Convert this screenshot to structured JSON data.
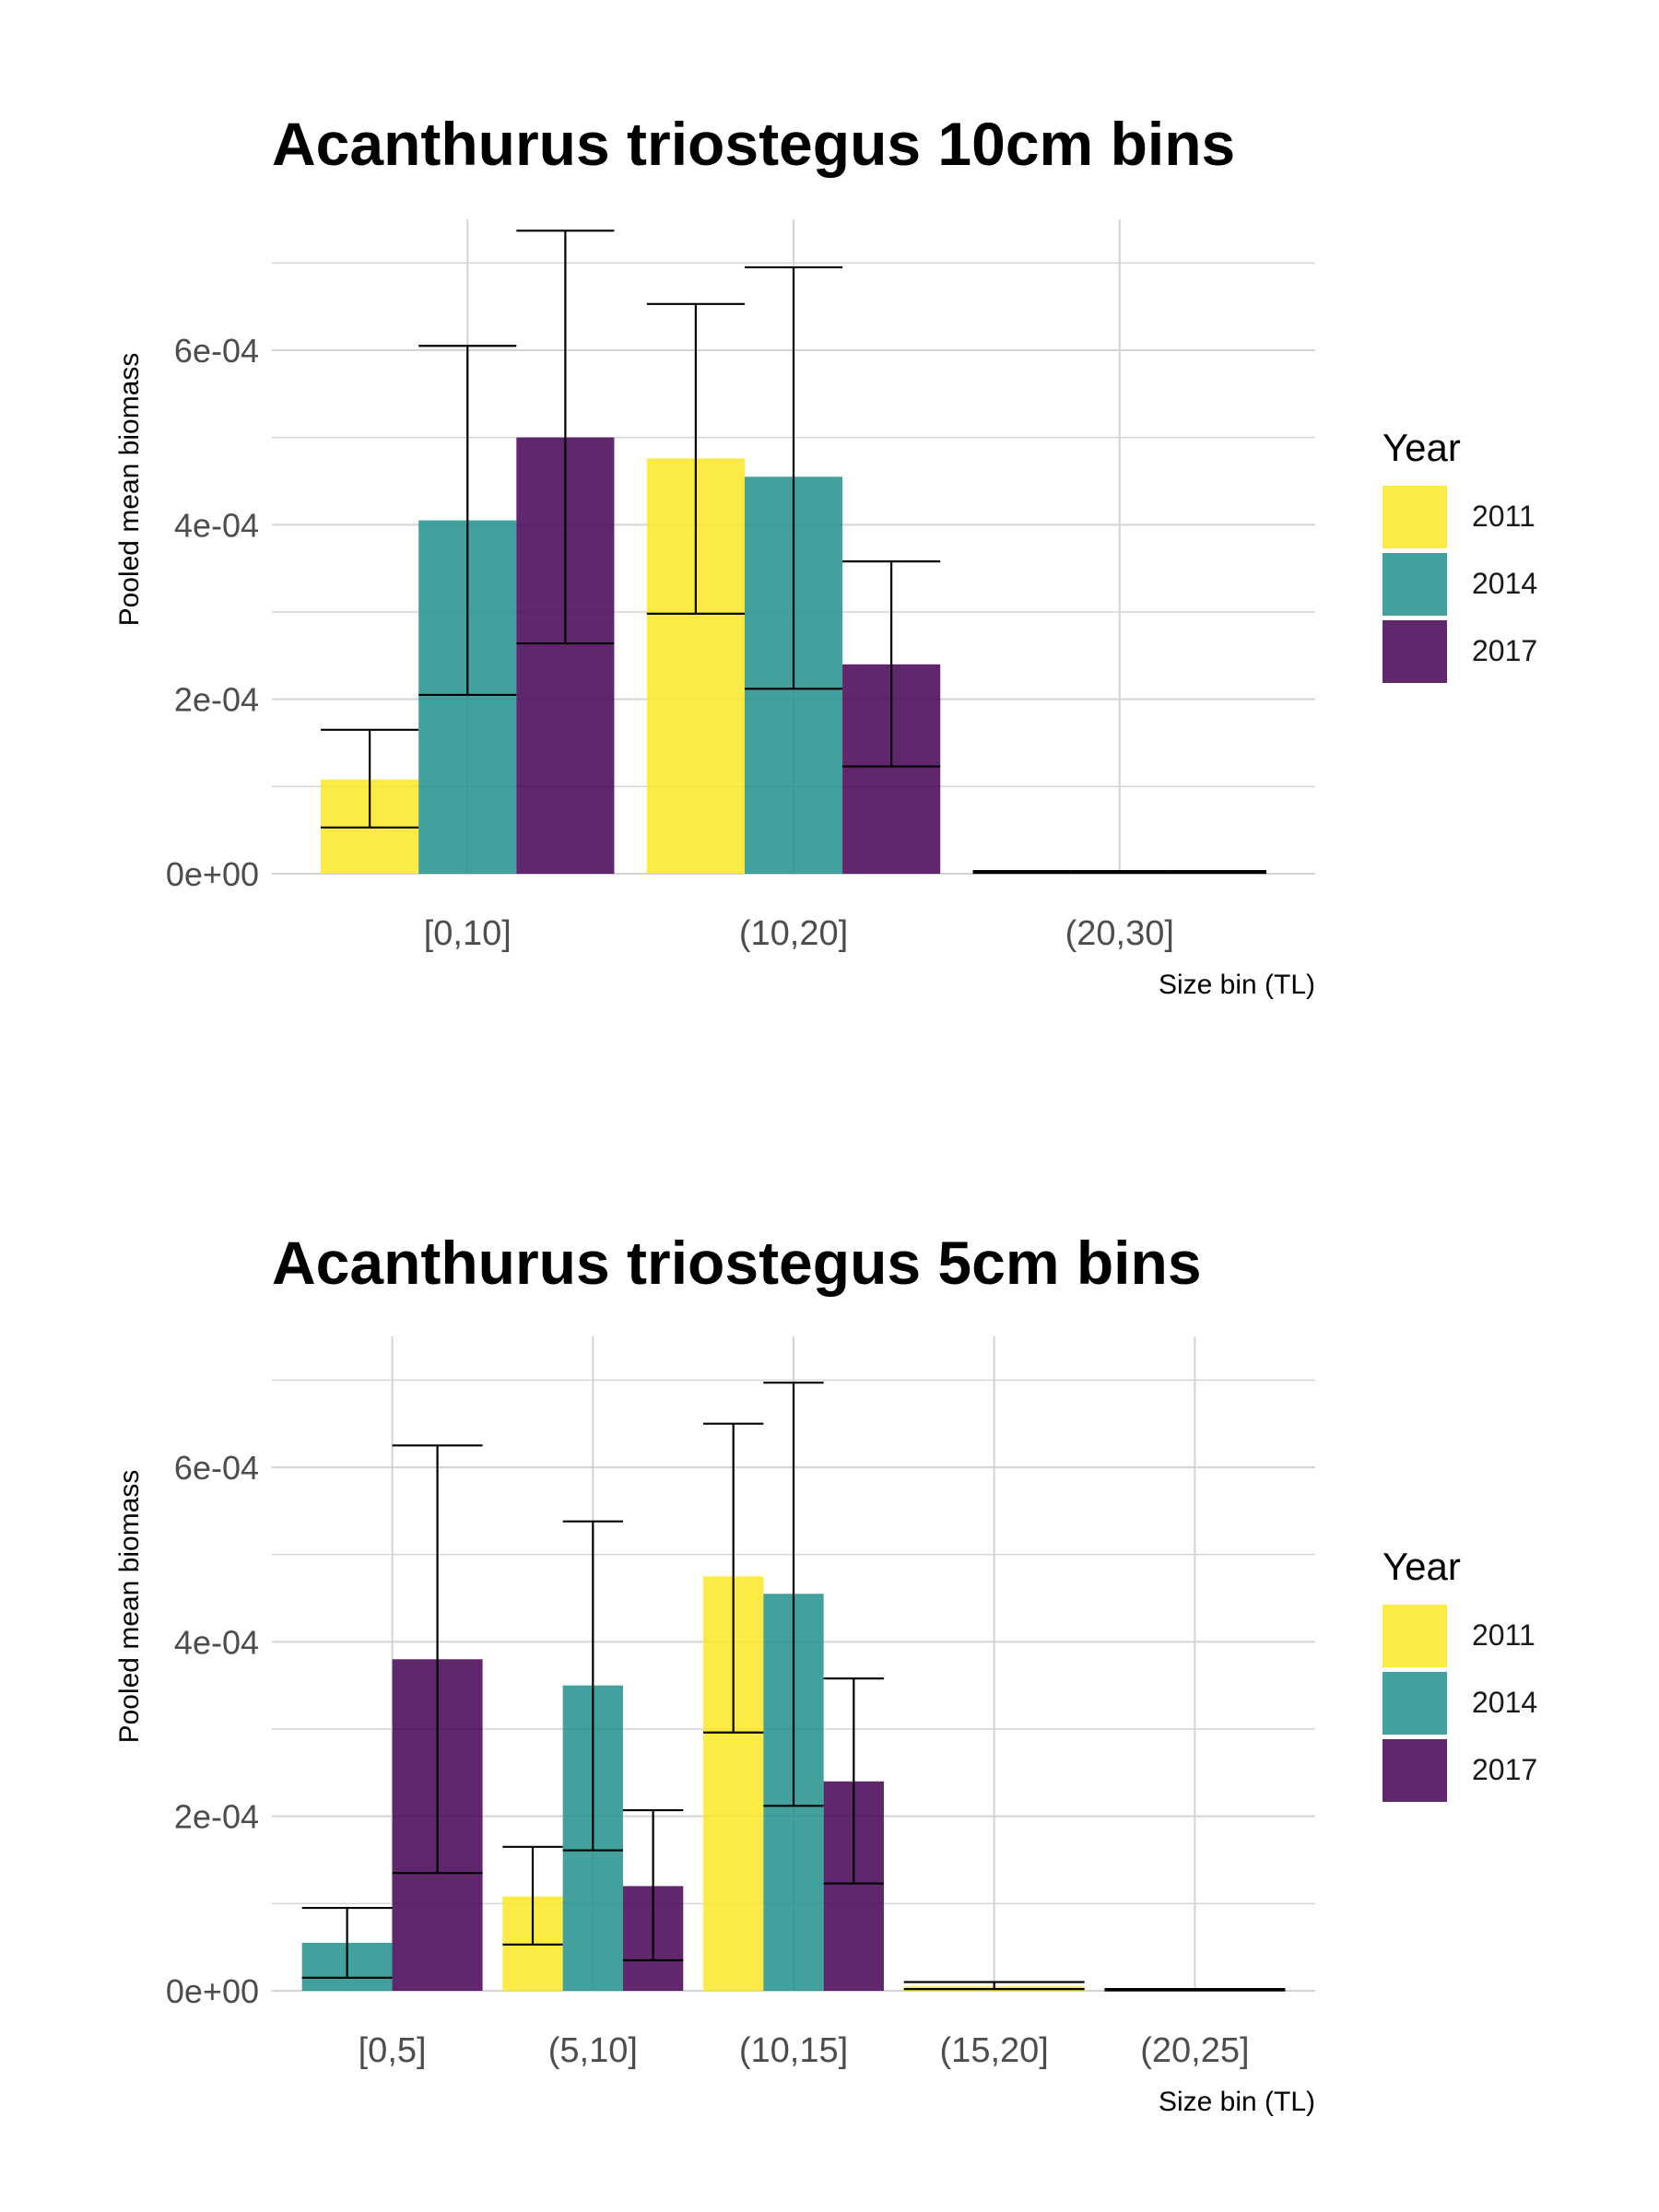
{
  "chart_data": [
    {
      "type": "bar",
      "title": "Acanthurus triostegus 10cm bins",
      "xlabel": "Size bin (TL)",
      "ylabel": "Pooled mean biomass",
      "categories": [
        "[0,10]",
        "(10,20]",
        "(20,30]"
      ],
      "ylim": [
        0,
        0.00075
      ],
      "yticks": [
        "0e+00",
        "2e-04",
        "4e-04",
        "6e-04"
      ],
      "ytick_values": [
        0,
        0.0002,
        0.0004,
        0.0006
      ],
      "grid": true,
      "legend_position": "right",
      "legend_title": "Year",
      "series": [
        {
          "name": "2011",
          "color": "#FDE725",
          "values": [
            0.000108,
            0.000476,
            2e-06
          ],
          "err_low": [
            5.3e-05,
            0.000298,
            1e-06
          ],
          "err_high": [
            0.000165,
            0.000653,
            3e-06
          ]
        },
        {
          "name": "2014",
          "color": "#21908C",
          "values": [
            0.000405,
            0.000455,
            2e-06
          ],
          "err_low": [
            0.000205,
            0.000212,
            1e-06
          ],
          "err_high": [
            0.000605,
            0.000695,
            3e-06
          ]
        },
        {
          "name": "2017",
          "color": "#440154",
          "values": [
            0.0005,
            0.00024,
            2e-06
          ],
          "err_low": [
            0.000264,
            0.000123,
            1e-06
          ],
          "err_high": [
            0.000737,
            0.000358,
            3e-06
          ]
        }
      ]
    },
    {
      "type": "bar",
      "title": "Acanthurus triostegus 5cm bins",
      "xlabel": "Size bin (TL)",
      "ylabel": "Pooled mean biomass",
      "categories": [
        "[0,5]",
        "(5,10]",
        "(10,15]",
        "(15,20]",
        "(20,25]"
      ],
      "ylim": [
        0,
        0.00075
      ],
      "yticks": [
        "0e+00",
        "2e-04",
        "4e-04",
        "6e-04"
      ],
      "ytick_values": [
        0,
        0.0002,
        0.0004,
        0.0006
      ],
      "grid": true,
      "legend_position": "right",
      "legend_title": "Year",
      "series": [
        {
          "name": "2011",
          "color": "#FDE725",
          "values": [
            null,
            0.000108,
            0.000475,
            5e-06,
            null
          ],
          "err_low": [
            null,
            5.3e-05,
            0.000296,
            2e-06,
            null
          ],
          "err_high": [
            null,
            0.000165,
            0.00065,
            1e-05,
            null
          ]
        },
        {
          "name": "2014",
          "color": "#21908C",
          "values": [
            5.5e-05,
            0.00035,
            0.000455,
            null,
            1e-06
          ],
          "err_low": [
            1.5e-05,
            0.000161,
            0.000212,
            null,
            5e-07
          ],
          "err_high": [
            9.5e-05,
            0.000538,
            0.000697,
            null,
            2e-06
          ]
        },
        {
          "name": "2017",
          "color": "#440154",
          "values": [
            0.00038,
            0.00012,
            0.00024,
            null,
            null
          ],
          "err_low": [
            0.000135,
            3.5e-05,
            0.000123,
            null,
            null
          ],
          "err_high": [
            0.000625,
            0.000207,
            0.000358,
            null,
            null
          ]
        }
      ]
    }
  ]
}
